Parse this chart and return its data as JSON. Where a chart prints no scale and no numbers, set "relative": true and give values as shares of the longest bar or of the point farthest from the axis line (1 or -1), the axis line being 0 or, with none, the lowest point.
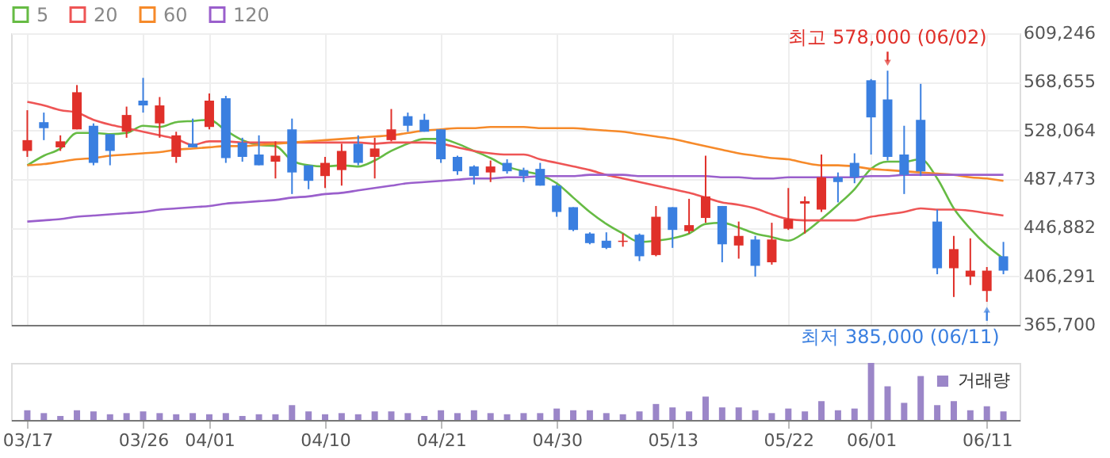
{
  "chart_data": [
    {
      "type": "candlestick",
      "categories": [
        "03/17",
        null,
        null,
        null,
        null,
        null,
        null,
        "03/26",
        null,
        null,
        null,
        "04/01",
        null,
        null,
        null,
        null,
        null,
        null,
        "04/10",
        null,
        null,
        null,
        null,
        null,
        null,
        "04/21",
        null,
        null,
        null,
        null,
        null,
        null,
        "04/30",
        null,
        null,
        null,
        null,
        null,
        null,
        "05/13",
        null,
        null,
        null,
        null,
        null,
        null,
        "05/22",
        null,
        null,
        null,
        null,
        "06/01",
        null,
        null,
        null,
        null,
        null,
        null,
        "06/11",
        null
      ],
      "ohlc": [
        [
          511000,
          545000,
          506000,
          520000
        ],
        [
          535000,
          543000,
          520000,
          530000
        ],
        [
          514000,
          524000,
          511000,
          519000
        ],
        [
          529000,
          566000,
          529000,
          560000
        ],
        [
          532000,
          534000,
          499000,
          501000
        ],
        [
          525000,
          525000,
          499000,
          511000
        ],
        [
          527000,
          548000,
          522000,
          541000
        ],
        [
          553000,
          572000,
          543000,
          549000
        ],
        [
          534000,
          556000,
          522000,
          549000
        ],
        [
          506000,
          527000,
          501000,
          524000
        ],
        [
          517000,
          538000,
          514000,
          514000
        ],
        [
          531000,
          559000,
          529000,
          553000
        ],
        [
          555000,
          557000,
          501000,
          505000
        ],
        [
          518000,
          522000,
          502000,
          506000
        ],
        [
          508000,
          524000,
          499000,
          499000
        ],
        [
          502000,
          519000,
          488000,
          507000
        ],
        [
          529000,
          538000,
          475000,
          493000
        ],
        [
          499000,
          499000,
          479000,
          486000
        ],
        [
          490000,
          506000,
          480000,
          501000
        ],
        [
          495000,
          517000,
          482000,
          511000
        ],
        [
          517000,
          524000,
          499000,
          501000
        ],
        [
          506000,
          522000,
          488000,
          513000
        ],
        [
          520000,
          546000,
          519000,
          529000
        ],
        [
          540000,
          543000,
          527000,
          532000
        ],
        [
          537000,
          542000,
          527000,
          527000
        ],
        [
          529000,
          529000,
          501000,
          504000
        ],
        [
          506000,
          507000,
          491000,
          494000
        ],
        [
          498000,
          499000,
          483000,
          490000
        ],
        [
          493000,
          503000,
          485000,
          498000
        ],
        [
          501000,
          504000,
          492000,
          494000
        ],
        [
          495000,
          497000,
          485000,
          490000
        ],
        [
          496000,
          501000,
          482000,
          482000
        ],
        [
          482000,
          483000,
          456000,
          460000
        ],
        [
          464000,
          464000,
          444000,
          445000
        ],
        [
          442000,
          443000,
          433000,
          434000
        ],
        [
          436000,
          443000,
          429000,
          430000
        ],
        [
          435000,
          442000,
          431000,
          436000
        ],
        [
          441000,
          442000,
          419000,
          423000
        ],
        [
          424000,
          465000,
          423000,
          456000
        ],
        [
          464000,
          464000,
          430000,
          445000
        ],
        [
          444000,
          471000,
          442000,
          449000
        ],
        [
          455000,
          507000,
          451000,
          473000
        ],
        [
          465000,
          465000,
          418000,
          433000
        ],
        [
          432000,
          452000,
          421000,
          440000
        ],
        [
          437000,
          440000,
          406000,
          415000
        ],
        [
          418000,
          451000,
          416000,
          437000
        ],
        [
          446000,
          480000,
          445000,
          454000
        ],
        [
          467000,
          473000,
          442000,
          469000
        ],
        [
          462000,
          508000,
          460000,
          489000
        ],
        [
          489000,
          493000,
          468000,
          485000
        ],
        [
          501000,
          509000,
          484000,
          489000
        ],
        [
          570000,
          571000,
          508000,
          539000
        ],
        [
          554000,
          578000,
          503000,
          506000
        ],
        [
          508000,
          532000,
          475000,
          491000
        ],
        [
          537000,
          567000,
          490000,
          494000
        ],
        [
          452000,
          462000,
          408000,
          413000
        ],
        [
          413000,
          440000,
          389000,
          429000
        ],
        [
          406000,
          438000,
          399000,
          411000
        ],
        [
          394000,
          414000,
          385000,
          411000
        ],
        [
          423000,
          435000,
          408000,
          411000
        ]
      ],
      "series": [
        {
          "name": "5",
          "type": "line",
          "color": "#66bb44",
          "values": [
            499000,
            507000,
            513000,
            526000,
            526000,
            525000,
            526000,
            532000,
            531000,
            535000,
            536000,
            537000,
            528000,
            520000,
            516000,
            515000,
            503000,
            499000,
            498000,
            499000,
            498000,
            503000,
            511000,
            517000,
            521000,
            521000,
            517000,
            511000,
            505000,
            498000,
            494000,
            491000,
            484000,
            472000,
            460000,
            450000,
            442000,
            435000,
            436000,
            438000,
            442000,
            450000,
            451000,
            447000,
            442000,
            439000,
            436000,
            443000,
            454000,
            466000,
            479000,
            496000,
            502000,
            502000,
            504000,
            488000,
            463000,
            446000,
            432000,
            421000
          ]
        },
        {
          "name": "20",
          "type": "line",
          "color": "#ee5555",
          "values": [
            552000,
            549000,
            545000,
            543000,
            537000,
            533000,
            530000,
            527000,
            524000,
            521000,
            516000,
            519000,
            519000,
            518000,
            518000,
            518000,
            518000,
            518000,
            518000,
            518000,
            518000,
            517000,
            518000,
            518000,
            518000,
            517000,
            514000,
            511000,
            509000,
            508000,
            508000,
            504000,
            501000,
            498000,
            495000,
            491000,
            488000,
            485000,
            482000,
            479000,
            476000,
            472000,
            468000,
            466000,
            463000,
            458000,
            454000,
            453000,
            453000,
            453000,
            453000,
            456000,
            458000,
            460000,
            463000,
            462000,
            462000,
            461000,
            459000,
            457000
          ]
        },
        {
          "name": "60",
          "type": "line",
          "color": "#f68a2a",
          "values": [
            499000,
            500000,
            502000,
            504000,
            505000,
            507000,
            508000,
            509000,
            510000,
            512000,
            513000,
            514000,
            515000,
            515000,
            516000,
            517000,
            518000,
            519000,
            520000,
            521000,
            522000,
            523000,
            524000,
            526000,
            528000,
            529000,
            530000,
            530000,
            531000,
            531000,
            531000,
            530000,
            530000,
            530000,
            529000,
            528000,
            527000,
            525000,
            523000,
            521000,
            518000,
            515000,
            512000,
            509000,
            507000,
            505000,
            504000,
            501000,
            499000,
            499000,
            498000,
            496000,
            495000,
            494000,
            493000,
            492000,
            491000,
            489000,
            488000,
            486000
          ]
        },
        {
          "name": "120",
          "type": "line",
          "color": "#9a5fcc",
          "values": [
            452000,
            453000,
            454000,
            456000,
            457000,
            458000,
            459000,
            460000,
            462000,
            463000,
            464000,
            465000,
            467000,
            468000,
            469000,
            470000,
            472000,
            473000,
            475000,
            476000,
            478000,
            480000,
            482000,
            484000,
            485000,
            486000,
            487000,
            488000,
            488000,
            489000,
            489000,
            490000,
            490000,
            490000,
            491000,
            491000,
            491000,
            490000,
            490000,
            490000,
            490000,
            490000,
            489000,
            489000,
            488000,
            488000,
            489000,
            489000,
            489000,
            489000,
            489000,
            490000,
            490000,
            491000,
            491000,
            491000,
            491000,
            491000,
            491000,
            491000
          ]
        }
      ],
      "ylim": [
        365700,
        609246
      ],
      "yticks": [
        {
          "value": 365700,
          "label": "365,700"
        },
        {
          "value": 406291,
          "label": "406,291"
        },
        {
          "value": 446882,
          "label": "446,882"
        },
        {
          "value": 487473,
          "label": "487,473"
        },
        {
          "value": 528064,
          "label": "528,064"
        },
        {
          "value": 568655,
          "label": "568,655"
        },
        {
          "value": 609246,
          "label": "609,246"
        }
      ],
      "grid": true,
      "legend": "top left",
      "tick_labels": "y",
      "annotations": [
        {
          "text": "최고 578,000 (06/02)",
          "y": 578000
        },
        {
          "text": "최저 385,000 (06/11)",
          "x": "06/11",
          "y": 385000
        }
      ]
    },
    {
      "type": "bar",
      "relative": true,
      "categories": [
        "03/17",
        null,
        null,
        null,
        null,
        null,
        null,
        "03/26",
        null,
        null,
        null,
        "04/01",
        null,
        null,
        null,
        null,
        null,
        null,
        "04/10",
        null,
        null,
        null,
        null,
        null,
        null,
        "04/21",
        null,
        null,
        null,
        null,
        null,
        null,
        "04/30",
        null,
        null,
        null,
        null,
        null,
        null,
        "05/13",
        null,
        null,
        null,
        null,
        null,
        null,
        "05/22",
        null,
        null,
        null,
        null,
        "06/01",
        null,
        null,
        null,
        null,
        null,
        null,
        "06/11",
        null
      ],
      "series": [
        {
          "name": "거래량",
          "color": "#9b86c8",
          "values": [
            0.17,
            0.12,
            0.07,
            0.17,
            0.15,
            0.1,
            0.12,
            0.15,
            0.12,
            0.1,
            0.12,
            0.1,
            0.12,
            0.07,
            0.1,
            0.1,
            0.26,
            0.15,
            0.1,
            0.12,
            0.1,
            0.15,
            0.15,
            0.12,
            0.07,
            0.17,
            0.12,
            0.17,
            0.12,
            0.1,
            0.12,
            0.12,
            0.2,
            0.17,
            0.17,
            0.12,
            0.1,
            0.15,
            0.28,
            0.22,
            0.15,
            0.41,
            0.22,
            0.22,
            0.17,
            0.12,
            0.2,
            0.15,
            0.33,
            0.17,
            0.2,
            1,
            0.59,
            0.3,
            0.77,
            0.26,
            0.33,
            0.17,
            0.24,
            0.15
          ]
        }
      ],
      "legend": "top right",
      "grid": false,
      "tick_labels": "x"
    }
  ]
}
